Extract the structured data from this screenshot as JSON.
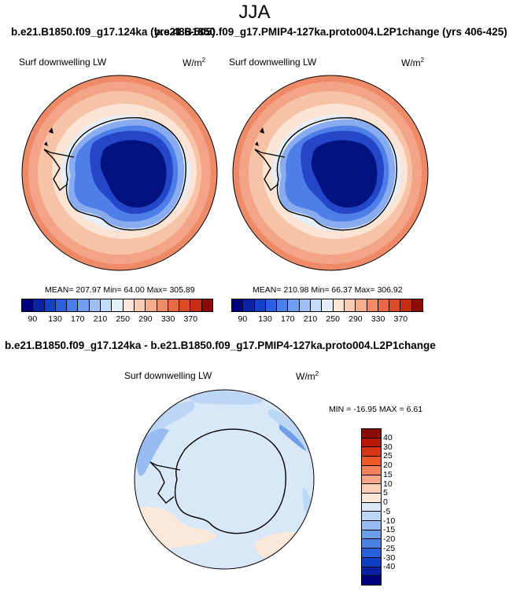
{
  "season": "JJA",
  "top_title_left": "b.e21.B1850.f09_g17.124ka (yrs 486-505)",
  "top_title_right": "b.e21.B1850.f09_g17.PMIP4-127ka.proto004.L2P1change (yrs 406-425)",
  "panel_left": {
    "variable": "Surf downwelling LW",
    "units": "W/m",
    "units_sup": "2",
    "stats": "MEAN= 207.97  Min=  64.00  Max= 305.89"
  },
  "panel_right": {
    "variable": "Surf downwelling LW",
    "units": "W/m",
    "units_sup": "2",
    "stats": "MEAN= 210.98  Min=  66.37  Max= 306.92"
  },
  "abs_colorbar": {
    "colors": [
      "#00007f",
      "#0a22a6",
      "#1240c8",
      "#2a5fe0",
      "#4a7ee9",
      "#729eef",
      "#9dbff4",
      "#c3dcf8",
      "#e3effa",
      "#fbe6d6",
      "#f8ccb0",
      "#f5ad8c",
      "#ef8c66",
      "#e86a44",
      "#dd4a28",
      "#c42d14",
      "#8b0c06"
    ],
    "ticks": [
      "90",
      "130",
      "170",
      "210",
      "250",
      "290",
      "330",
      "370"
    ]
  },
  "diff_title": "b.e21.B1850.f09_g17.124ka - b.e21.B1850.f09_g17.PMIP4-127ka.proto004.L2P1change",
  "panel_diff": {
    "variable": "Surf downwelling LW",
    "units": "W/m",
    "units_sup": "2",
    "stats": "MIN = -16.95 MAX =   6.61"
  },
  "diff_colorbar": {
    "colors_top_to_bottom": [
      "#8b0c06",
      "#b8190b",
      "#d83516",
      "#ef5a2a",
      "#f5805b",
      "#f8a888",
      "#fad0b8",
      "#fbe8d8",
      "#d9e8f9",
      "#bcd6f6",
      "#98bcf1",
      "#6e9ee9",
      "#4a80e2",
      "#2a60d8",
      "#1240c4",
      "#0a22a0",
      "#00007f"
    ],
    "ticks": [
      "40",
      "30",
      "25",
      "20",
      "15",
      "10",
      "5",
      "0",
      "-5",
      "-10",
      "-15",
      "-20",
      "-25",
      "-30",
      "-40"
    ]
  }
}
